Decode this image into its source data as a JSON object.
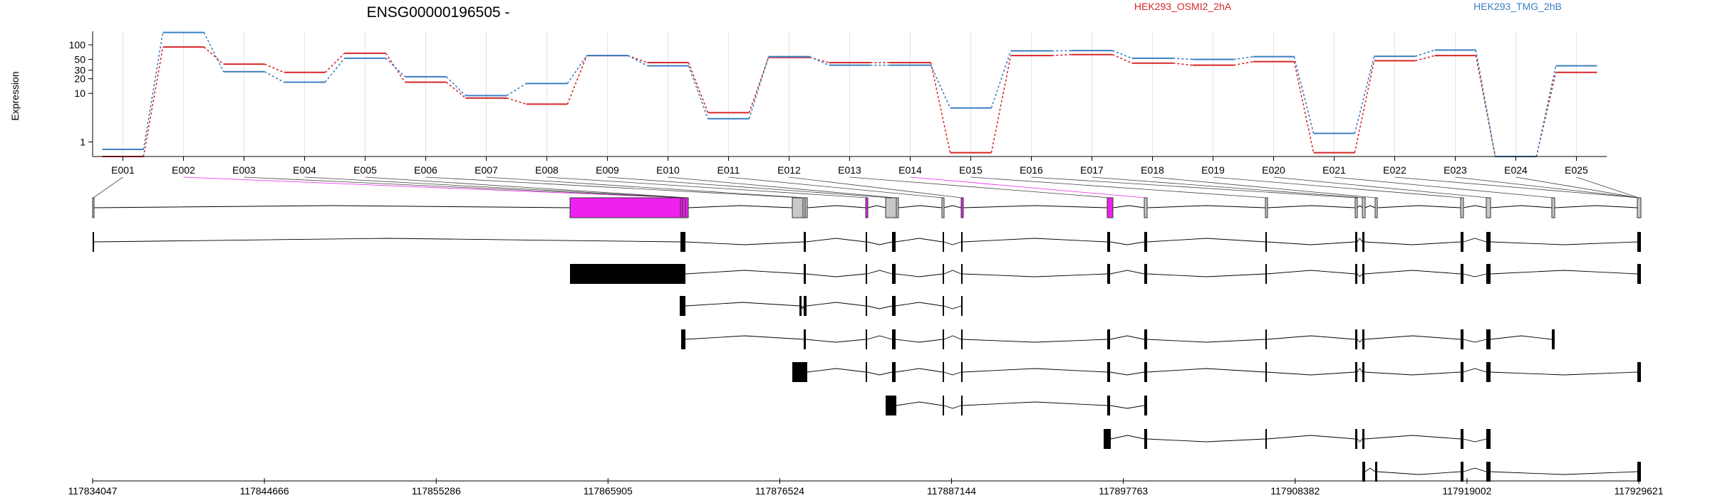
{
  "chart_data": {
    "type": "line",
    "title": "ENSG00000196505 -",
    "ylabel": "Expression",
    "yscale": "log",
    "ylim": [
      0.5,
      190
    ],
    "yticks": [
      1,
      10,
      20,
      30,
      50,
      100
    ],
    "legend_placement": "top",
    "grid": true,
    "categories": [
      "E001",
      "E002",
      "E003",
      "E004",
      "E005",
      "E006",
      "E007",
      "E008",
      "E009",
      "E010",
      "E011",
      "E012",
      "E013",
      "E014",
      "E015",
      "E016",
      "E017",
      "E018",
      "E019",
      "E020",
      "E021",
      "E022",
      "E023",
      "E024",
      "E025"
    ],
    "series": [
      {
        "name": "HEK293_OSMI2_2hA",
        "color": "#d62728",
        "values": [
          0.5,
          90,
          40,
          27,
          67,
          17,
          8,
          6,
          60,
          43,
          4,
          55,
          43,
          43,
          0.6,
          60,
          63,
          42,
          38,
          45,
          0.6,
          47,
          60,
          0.5,
          27
        ]
      },
      {
        "name": "HEK293_TMG_2hB",
        "color": "#3a7fc1",
        "values": [
          0.7,
          180,
          28,
          17,
          53,
          22,
          9,
          16,
          60,
          37,
          3,
          57,
          38,
          38,
          5,
          75,
          76,
          53,
          50,
          57,
          1.5,
          58,
          78,
          0.5,
          37
        ]
      }
    ],
    "genomic_ticks": [
      "117834047",
      "117844666",
      "117855286",
      "117865905",
      "117876524",
      "117887144",
      "117897763",
      "117908382",
      "117919002",
      "117929621"
    ],
    "highlight_color": "#ee22ee",
    "exon_color": "#c8c8c8",
    "transcript_color": "#000000"
  }
}
